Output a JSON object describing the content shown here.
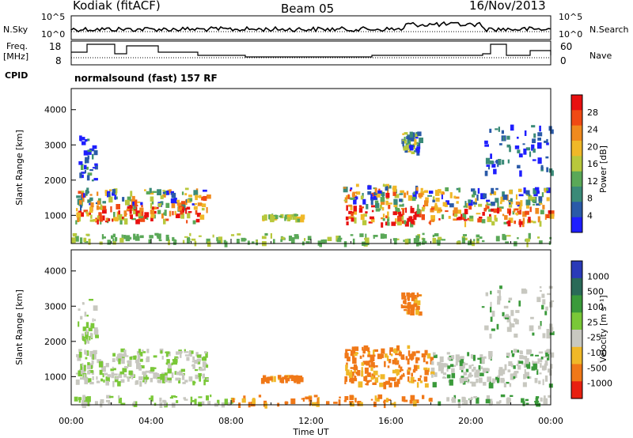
{
  "header": {
    "station": "Kodiak (fitACF)",
    "beam": "Beam 05",
    "date": "16/Nov/2013"
  },
  "mini_panels": {
    "nsky_label": "N.Sky",
    "nsearch_label": "N.Search",
    "freq_label_1": "Freq.",
    "freq_label_2": "[MHz]",
    "nave_label": "Nave",
    "cpid_label": "CPID",
    "noise_tick_top": "10^5",
    "noise_tick_bottom": "10^0",
    "freq_tick_top": "18",
    "freq_tick_bottom": "8",
    "nave_tick_top": "60",
    "nave_tick_bottom": "0",
    "cpid_text": "normalsound (fast) 157 RF"
  },
  "chart_data": [
    {
      "type": "heatmap",
      "title": "",
      "ylabel": "Slant Range [km]",
      "xlabel": "",
      "yticks": [
        "1000",
        "2000",
        "3000",
        "4000"
      ],
      "ylim": [
        200,
        4600
      ],
      "xlim_hours": [
        0,
        24
      ],
      "colorbar": {
        "label": "Power [dB]",
        "ticks": [
          "4",
          "8",
          "12",
          "16",
          "20",
          "24",
          "28"
        ],
        "colors": [
          "#1e1eff",
          "#2a5aa8",
          "#3a8a78",
          "#5aa858",
          "#b8c83c",
          "#f0b828",
          "#f08a1e",
          "#f04a14",
          "#e81010"
        ]
      },
      "regions_description_values": [
        {
          "t": [
            0.2,
            7.0
          ],
          "r": [
            800,
            1800
          ],
          "level": "high"
        },
        {
          "t": [
            13.6,
            24.0
          ],
          "r": [
            800,
            1900
          ],
          "level": "high"
        },
        {
          "t": [
            16.5,
            17.5
          ],
          "r": [
            2800,
            3400
          ],
          "level": "medium"
        }
      ]
    },
    {
      "type": "heatmap",
      "title": "",
      "ylabel": "Slant Range [km]",
      "xlabel": "Time UT",
      "yticks": [
        "1000",
        "2000",
        "3000",
        "4000"
      ],
      "ylim": [
        200,
        4600
      ],
      "xticks": [
        "00:00",
        "04:00",
        "08:00",
        "12:00",
        "16:00",
        "20:00",
        "00:00"
      ],
      "colorbar": {
        "label": "Velocity [m s⁻¹]",
        "ticks": [
          "1000",
          "500",
          "100",
          "25",
          "-25",
          "-100",
          "-500",
          "-1000"
        ],
        "colors": [
          "#2a3ab8",
          "#2a6a58",
          "#3a9a3a",
          "#7ac838",
          "#c8c8c0",
          "#f0b828",
          "#f07818",
          "#e82010"
        ]
      }
    }
  ]
}
